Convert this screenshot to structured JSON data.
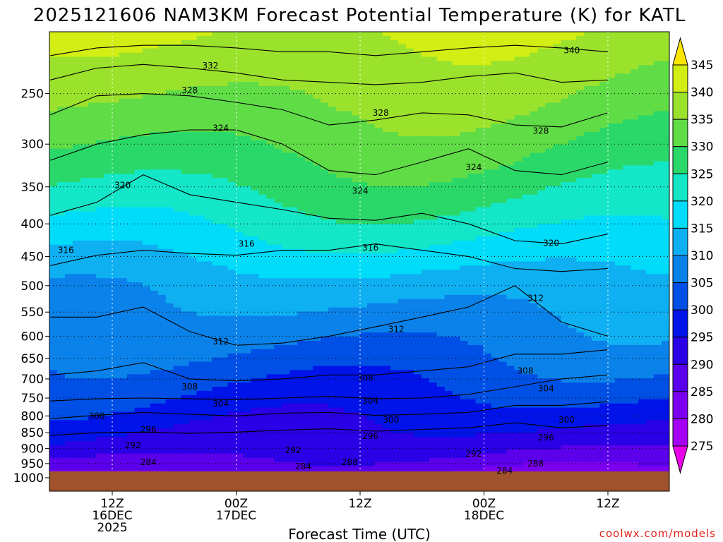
{
  "chart_data": {
    "type": "heatmap",
    "title": "2025121606 NAM3KM Forecast Potential Temperature (K) for KATL",
    "xlabel": "Forecast Time (UTC)",
    "y_ticks": [
      250,
      300,
      350,
      400,
      450,
      500,
      550,
      600,
      650,
      700,
      750,
      800,
      850,
      900,
      950,
      1000
    ],
    "ylim": [
      1000,
      200
    ],
    "y_scale": "log",
    "x_ticks": [
      {
        "line1": "12Z",
        "line2": "16DEC",
        "line3": "2025"
      },
      {
        "line1": "00Z",
        "line2": "17DEC",
        "line3": ""
      },
      {
        "line1": "12Z",
        "line2": "",
        "line3": ""
      },
      {
        "line1": "00Z",
        "line2": "18DEC",
        "line3": ""
      },
      {
        "line1": "12Z",
        "line2": "",
        "line3": ""
      }
    ],
    "colorbar": {
      "levels": [
        275,
        280,
        285,
        290,
        295,
        300,
        305,
        310,
        315,
        320,
        325,
        330,
        335,
        340,
        345
      ],
      "colors": [
        "#e800e8",
        "#a400f4",
        "#7c00f0",
        "#5a00ea",
        "#2a00e6",
        "#0014ea",
        "#0050e6",
        "#0a82ea",
        "#0eb0f2",
        "#00dcfa",
        "#14e6c8",
        "#2ad86a",
        "#60dc46",
        "#9be22c",
        "#d2ee14",
        "#fae600"
      ]
    },
    "contour_labels": [
      {
        "text": "340",
        "x_hr": 44.5,
        "p": 214
      },
      {
        "text": "332",
        "x_hr": 9.5,
        "p": 226
      },
      {
        "text": "328",
        "x_hr": 7.5,
        "p": 247
      },
      {
        "text": "328",
        "x_hr": 26,
        "p": 268
      },
      {
        "text": "328",
        "x_hr": 41.5,
        "p": 286
      },
      {
        "text": "324",
        "x_hr": 10.5,
        "p": 283
      },
      {
        "text": "324",
        "x_hr": 35,
        "p": 326
      },
      {
        "text": "324",
        "x_hr": 24,
        "p": 355
      },
      {
        "text": "320",
        "x_hr": 1,
        "p": 348
      },
      {
        "text": "320",
        "x_hr": 42.5,
        "p": 429
      },
      {
        "text": "316",
        "x_hr": -4.5,
        "p": 440
      },
      {
        "text": "316",
        "x_hr": 13,
        "p": 430
      },
      {
        "text": "316",
        "x_hr": 25,
        "p": 436
      },
      {
        "text": "312",
        "x_hr": 41,
        "p": 523
      },
      {
        "text": "312",
        "x_hr": 27.5,
        "p": 585
      },
      {
        "text": "312",
        "x_hr": 10.5,
        "p": 612
      },
      {
        "text": "308",
        "x_hr": 40,
        "p": 680
      },
      {
        "text": "308",
        "x_hr": 24.5,
        "p": 697
      },
      {
        "text": "308",
        "x_hr": 7.5,
        "p": 720
      },
      {
        "text": "304",
        "x_hr": 42,
        "p": 725
      },
      {
        "text": "304",
        "x_hr": 25,
        "p": 758
      },
      {
        "text": "304",
        "x_hr": 10.5,
        "p": 765
      },
      {
        "text": "300",
        "x_hr": -1.5,
        "p": 800
      },
      {
        "text": "300",
        "x_hr": 27,
        "p": 812
      },
      {
        "text": "300",
        "x_hr": 44,
        "p": 812
      },
      {
        "text": "296",
        "x_hr": 3.5,
        "p": 840
      },
      {
        "text": "296",
        "x_hr": 25,
        "p": 860
      },
      {
        "text": "296",
        "x_hr": 42,
        "p": 865
      },
      {
        "text": "292",
        "x_hr": 2,
        "p": 890
      },
      {
        "text": "292",
        "x_hr": 17.5,
        "p": 905
      },
      {
        "text": "292",
        "x_hr": 35,
        "p": 917
      },
      {
        "text": "288",
        "x_hr": 23,
        "p": 945
      },
      {
        "text": "288",
        "x_hr": 41,
        "p": 950
      },
      {
        "text": "284",
        "x_hr": 3.5,
        "p": 945
      },
      {
        "text": "284",
        "x_hr": 18.5,
        "p": 960
      },
      {
        "text": "284",
        "x_hr": 38,
        "p": 975
      }
    ],
    "isentropes": [
      {
        "k": 296,
        "p": [
          858,
          850,
          848,
          852,
          848,
          842,
          838,
          845,
          840,
          835,
          820,
          835,
          828
        ]
      },
      {
        "k": 300,
        "p": [
          808,
          798,
          790,
          795,
          800,
          792,
          790,
          798,
          795,
          790,
          770,
          770,
          760
        ]
      },
      {
        "k": 304,
        "p": [
          758,
          752,
          750,
          752,
          755,
          750,
          745,
          752,
          750,
          740,
          720,
          700,
          690
        ]
      },
      {
        "k": 308,
        "p": [
          690,
          680,
          660,
          700,
          705,
          700,
          690,
          690,
          680,
          670,
          640,
          640,
          630
        ]
      },
      {
        "k": 312,
        "p": [
          560,
          560,
          540,
          590,
          620,
          615,
          600,
          580,
          560,
          540,
          500,
          570,
          600
        ]
      },
      {
        "k": 316,
        "p": [
          465,
          448,
          440,
          445,
          448,
          440,
          440,
          430,
          440,
          450,
          470,
          475,
          470
        ]
      },
      {
        "k": 320,
        "p": [
          388,
          370,
          335,
          360,
          370,
          380,
          392,
          395,
          385,
          400,
          425,
          430,
          415
        ]
      },
      {
        "k": 324,
        "p": [
          318,
          300,
          290,
          285,
          285,
          300,
          330,
          335,
          320,
          305,
          330,
          335,
          320
        ]
      },
      {
        "k": 328,
        "p": [
          270,
          252,
          250,
          252,
          258,
          265,
          280,
          275,
          268,
          270,
          280,
          282,
          268
        ]
      },
      {
        "k": 332,
        "p": [
          238,
          228,
          225,
          228,
          232,
          238,
          240,
          242,
          240,
          235,
          232,
          240,
          238
        ]
      },
      {
        "k": 336,
        "p": [
          218,
          212,
          210,
          210,
          212,
          215,
          215,
          218,
          215,
          212,
          210,
          212,
          215
        ]
      }
    ]
  },
  "watermark": "coolwx.com/models"
}
